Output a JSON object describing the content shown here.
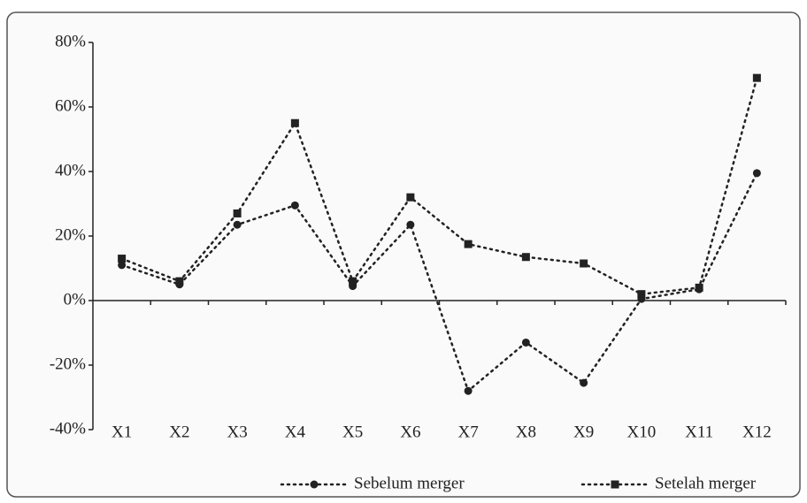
{
  "chart_data": {
    "type": "line",
    "categories": [
      "X1",
      "X2",
      "X3",
      "X4",
      "X5",
      "X6",
      "X7",
      "X8",
      "X9",
      "X10",
      "X11",
      "X12"
    ],
    "series": [
      {
        "name": "Sebelum merger",
        "color": "#222222",
        "marker": "circle",
        "values": [
          11,
          5,
          23.5,
          29.5,
          4.5,
          23.5,
          -28,
          -13,
          -25.5,
          0.5,
          3.5,
          39.5
        ]
      },
      {
        "name": "Setelah merger",
        "color": "#222222",
        "marker": "square",
        "values": [
          13,
          6,
          27,
          55,
          6,
          32,
          17.5,
          13.5,
          11.5,
          2,
          4,
          69
        ]
      }
    ],
    "ylim": [
      -40,
      80
    ],
    "yticks": [
      {
        "value": -40,
        "label": "-40%"
      },
      {
        "value": -20,
        "label": "-20%"
      },
      {
        "value": 0,
        "label": "0%"
      },
      {
        "value": 20,
        "label": "20%"
      },
      {
        "value": 40,
        "label": "40%"
      },
      {
        "value": 60,
        "label": "60%"
      },
      {
        "value": 80,
        "label": "80%"
      }
    ],
    "grid": false,
    "legend": "bottom"
  }
}
